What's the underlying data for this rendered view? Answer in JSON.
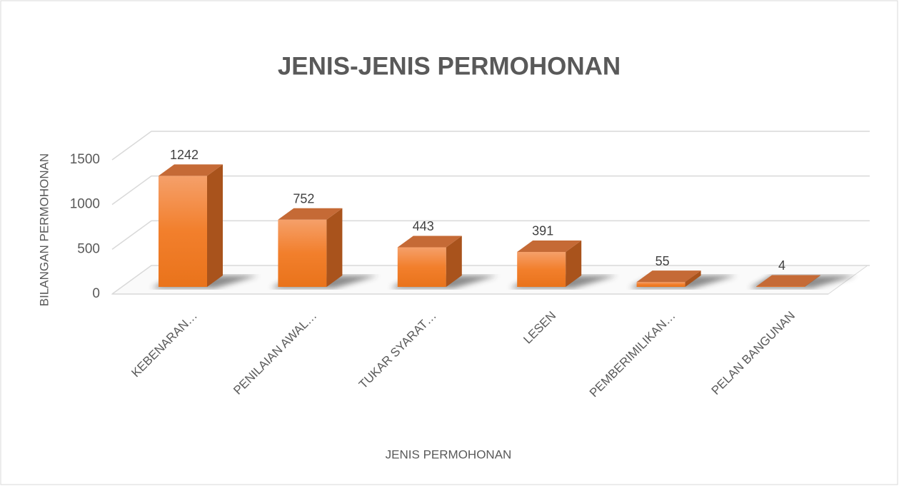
{
  "chart_data": {
    "type": "bar3d",
    "title": "JENIS-JENIS PERMOHONAN",
    "x_label": "JENIS PERMOHONAN",
    "y_label": "BILANGAN PERMOHONAN",
    "categories": [
      "KEBENARAN…",
      "PENILAIAN AWAL…",
      "TUKAR SYARAT…",
      "LESEN",
      "PEMBERIMILIKAN…",
      "PELAN BANGUNAN"
    ],
    "values": [
      1242,
      752,
      443,
      391,
      55,
      4
    ],
    "color": "#f07b22",
    "ylim": [
      0,
      1500
    ],
    "yticks": [
      0,
      500,
      1000,
      1500
    ],
    "grid": true
  }
}
